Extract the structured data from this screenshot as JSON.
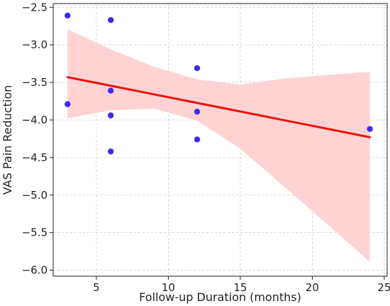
{
  "chart_data": {
    "type": "scatter",
    "title": "",
    "xlabel": "Follow-up Duration (months)",
    "ylabel": "VAS Pain Reduction",
    "xlim": [
      2,
      25.2
    ],
    "ylim": [
      -6.08,
      -2.45
    ],
    "xticks": [
      5,
      10,
      15,
      20,
      25
    ],
    "xtick_labels": [
      "5",
      "10",
      "15",
      "20",
      "25"
    ],
    "yticks": [
      -2.5,
      -3.0,
      -3.5,
      -4.0,
      -4.5,
      -5.0,
      -5.5,
      -6.0
    ],
    "ytick_labels": [
      "−2.5",
      "−3.0",
      "−3.5",
      "−4.0",
      "−4.5",
      "−5.0",
      "−5.5",
      "−6.0"
    ],
    "grid": true,
    "points": [
      {
        "x": 3,
        "y": -2.61
      },
      {
        "x": 3,
        "y": -3.79
      },
      {
        "x": 6,
        "y": -2.67
      },
      {
        "x": 6,
        "y": -3.61
      },
      {
        "x": 6,
        "y": -3.94
      },
      {
        "x": 6,
        "y": -4.42
      },
      {
        "x": 12,
        "y": -3.31
      },
      {
        "x": 12,
        "y": -3.89
      },
      {
        "x": 12,
        "y": -4.26
      },
      {
        "x": 24,
        "y": -4.12
      }
    ],
    "regression_line": {
      "x": [
        3,
        24
      ],
      "y": [
        -3.43,
        -4.23
      ]
    },
    "confidence_band": {
      "x": [
        3,
        6,
        9,
        12,
        15,
        18,
        21,
        24
      ],
      "lower": [
        -3.98,
        -3.87,
        -3.85,
        -4.01,
        -4.38,
        -4.88,
        -5.38,
        -5.89
      ],
      "upper": [
        -2.79,
        -3.06,
        -3.29,
        -3.46,
        -3.53,
        -3.45,
        -3.4,
        -3.36
      ]
    },
    "colors": {
      "points": "#3a2bf0",
      "line": "#ee1111",
      "band": "#ffd3d3",
      "grid": "#cccccc",
      "axis": "#222222"
    }
  }
}
